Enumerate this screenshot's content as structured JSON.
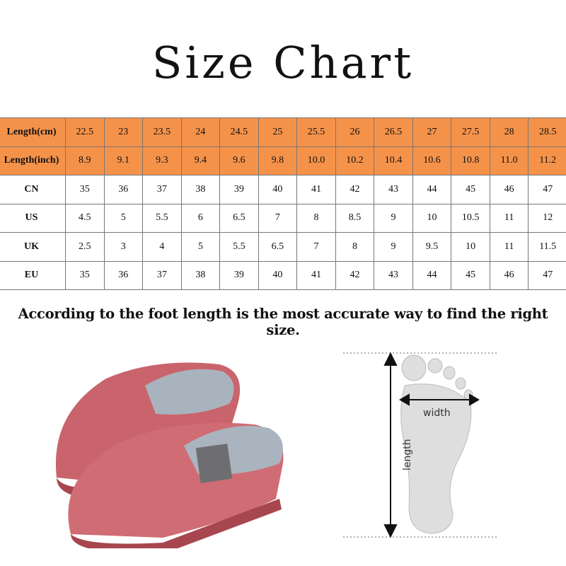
{
  "title": "Size Chart",
  "table": {
    "rows": [
      {
        "label": "Length(cm)",
        "highlight": true,
        "values": [
          "22.5",
          "23",
          "23.5",
          "24",
          "24.5",
          "25",
          "25.5",
          "26",
          "26.5",
          "27",
          "27.5",
          "28",
          "28.5"
        ]
      },
      {
        "label": "Length(inch)",
        "highlight": true,
        "values": [
          "8.9",
          "9.1",
          "9.3",
          "9.4",
          "9.6",
          "9.8",
          "10.0",
          "10.2",
          "10.4",
          "10.6",
          "10.8",
          "11.0",
          "11.2"
        ]
      },
      {
        "label": "CN",
        "highlight": false,
        "values": [
          "35",
          "36",
          "37",
          "38",
          "39",
          "40",
          "41",
          "42",
          "43",
          "44",
          "45",
          "46",
          "47"
        ]
      },
      {
        "label": "US",
        "highlight": false,
        "values": [
          "4.5",
          "5",
          "5.5",
          "6",
          "6.5",
          "7",
          "8",
          "8.5",
          "9",
          "10",
          "10.5",
          "11",
          "12"
        ]
      },
      {
        "label": "UK",
        "highlight": false,
        "values": [
          "2.5",
          "3",
          "4",
          "5",
          "5.5",
          "6.5",
          "7",
          "8",
          "9",
          "9.5",
          "10",
          "11",
          "11.5"
        ]
      },
      {
        "label": "EU",
        "highlight": false,
        "values": [
          "35",
          "36",
          "37",
          "38",
          "39",
          "40",
          "41",
          "42",
          "43",
          "44",
          "45",
          "46",
          "47"
        ]
      }
    ],
    "header_color": "#f5924a"
  },
  "note": "According to the foot length is the most  accurate way to find the right size.",
  "diagram": {
    "width_label": "width",
    "length_label": "length"
  },
  "colors": {
    "slipper": "#c9646c",
    "lining": "#a9b3bd"
  }
}
